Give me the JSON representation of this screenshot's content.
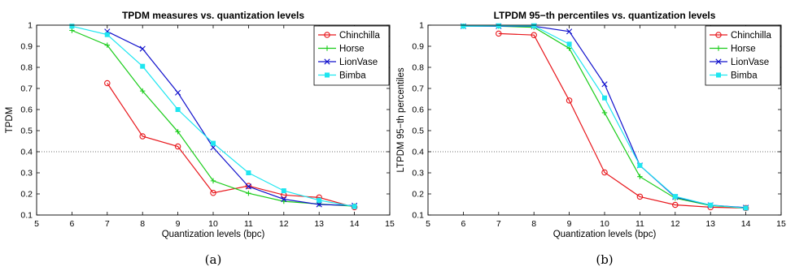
{
  "chart_data": [
    {
      "type": "line",
      "title": "TPDM measures vs. quantization levels",
      "xlabel": "Quantization levels (bpc)",
      "ylabel": "TPDM",
      "caption": "(a)",
      "xlim": [
        5,
        15
      ],
      "ylim": [
        0.1,
        1
      ],
      "xticks": [
        "5",
        "6",
        "7",
        "8",
        "9",
        "10",
        "11",
        "12",
        "13",
        "14",
        "15"
      ],
      "yticks": [
        "0.1",
        "0.2",
        "0.3",
        "0.4",
        "0.5",
        "0.6",
        "0.7",
        "0.8",
        "0.9",
        "1"
      ],
      "reference_line": 0.4,
      "legend_position": "top-right",
      "series": [
        {
          "name": "Chinchilla",
          "color": "#e8171c",
          "marker": "circle",
          "x": [
            7,
            8,
            9,
            10,
            11,
            12,
            13,
            14
          ],
          "y": [
            0.725,
            0.473,
            0.425,
            0.205,
            0.238,
            0.195,
            0.183,
            0.137
          ]
        },
        {
          "name": "Horse",
          "color": "#19cc19",
          "marker": "plus",
          "x": [
            6,
            7,
            8,
            9,
            10,
            11,
            12,
            13,
            14
          ],
          "y": [
            0.975,
            0.905,
            0.688,
            0.495,
            0.262,
            0.203,
            0.165,
            0.152,
            0.142
          ]
        },
        {
          "name": "LionVase",
          "color": "#1010cc",
          "marker": "x",
          "x": [
            7,
            8,
            9,
            10,
            11,
            12,
            13,
            14
          ],
          "y": [
            0.97,
            0.888,
            0.68,
            0.42,
            0.235,
            0.175,
            0.15,
            0.145
          ]
        },
        {
          "name": "Bimba",
          "color": "#1ee6f0",
          "marker": "square",
          "x": [
            6,
            7,
            8,
            9,
            10,
            11,
            12,
            13,
            14
          ],
          "y": [
            0.995,
            0.955,
            0.805,
            0.6,
            0.44,
            0.3,
            0.215,
            0.17,
            0.14
          ]
        }
      ]
    },
    {
      "type": "line",
      "title": "LTPDM 95−th percentiles vs. quantization levels",
      "xlabel": "Quantization levels (bpc)",
      "ylabel": "LTPDM 95−th percentiles",
      "caption": "(b)",
      "xlim": [
        5,
        15
      ],
      "ylim": [
        0.1,
        1
      ],
      "xticks": [
        "5",
        "6",
        "7",
        "8",
        "9",
        "10",
        "11",
        "12",
        "13",
        "14",
        "15"
      ],
      "yticks": [
        "0.1",
        "0.2",
        "0.3",
        "0.4",
        "0.5",
        "0.6",
        "0.7",
        "0.8",
        "0.9",
        "1"
      ],
      "reference_line": 0.4,
      "legend_position": "top-right",
      "series": [
        {
          "name": "Chinchilla",
          "color": "#e8171c",
          "marker": "circle",
          "x": [
            7,
            8,
            9,
            10,
            11,
            12,
            13,
            14
          ],
          "y": [
            0.96,
            0.953,
            0.643,
            0.302,
            0.187,
            0.148,
            0.137,
            0.133
          ]
        },
        {
          "name": "Horse",
          "color": "#19cc19",
          "marker": "plus",
          "x": [
            6,
            7,
            8,
            9,
            10,
            11,
            12,
            13,
            14
          ],
          "y": [
            0.995,
            0.995,
            0.99,
            0.89,
            0.585,
            0.282,
            0.18,
            0.145,
            0.133
          ]
        },
        {
          "name": "LionVase",
          "color": "#1010cc",
          "marker": "x",
          "x": [
            6,
            7,
            8,
            9,
            10,
            11,
            12,
            13,
            14
          ],
          "y": [
            0.995,
            0.995,
            0.995,
            0.97,
            0.72,
            0.335,
            0.185,
            0.147,
            0.135
          ]
        },
        {
          "name": "Bimba",
          "color": "#1ee6f0",
          "marker": "square",
          "x": [
            6,
            7,
            8,
            9,
            10,
            11,
            12,
            13,
            14
          ],
          "y": [
            0.995,
            0.997,
            0.997,
            0.91,
            0.655,
            0.335,
            0.188,
            0.147,
            0.133
          ]
        }
      ]
    }
  ]
}
